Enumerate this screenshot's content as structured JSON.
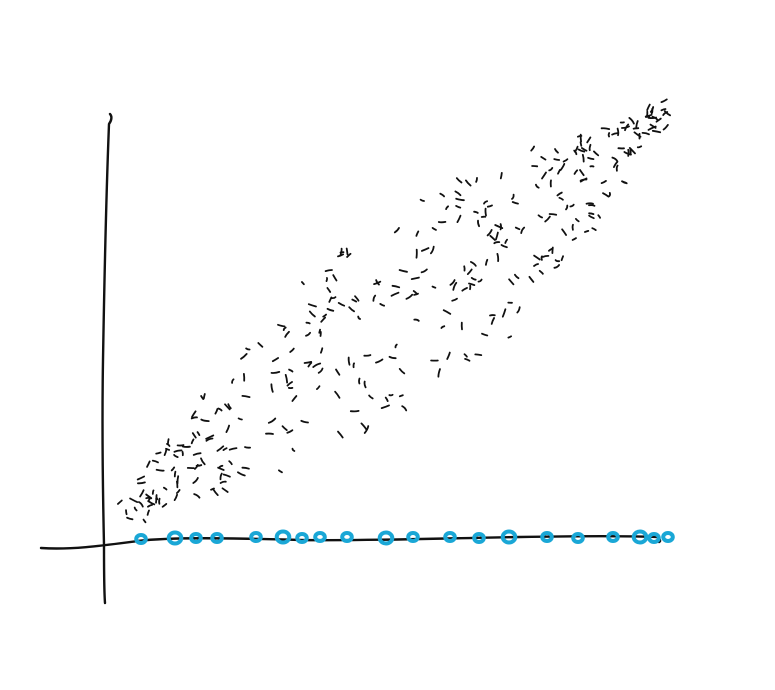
{
  "diagram": {
    "colors": {
      "ink": "#111111",
      "dot": "#1aa7d6",
      "background": "#ffffff"
    },
    "line_dots": {
      "count": 20,
      "color": "#1aa7d6"
    },
    "cloud": {
      "dash_count": 340
    }
  }
}
